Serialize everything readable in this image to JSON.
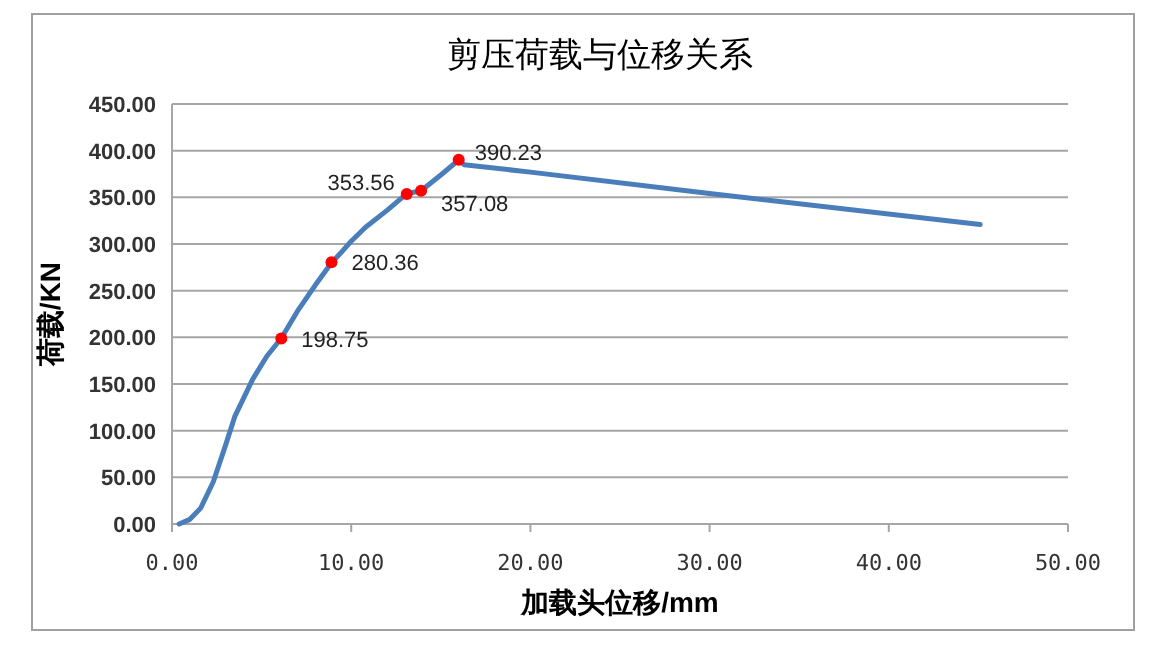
{
  "chart_data": {
    "type": "line",
    "title": "剪压荷载与位移关系",
    "xlabel": "加载头位移/mm",
    "ylabel": "荷载/KN",
    "xlim": [
      0,
      50
    ],
    "xticks": [
      {
        "value": 0,
        "label": "0.00"
      },
      {
        "value": 10,
        "label": "10.00"
      },
      {
        "value": 20,
        "label": "20.00"
      },
      {
        "value": 30,
        "label": "30.00"
      },
      {
        "value": 40,
        "label": "40.00"
      },
      {
        "value": 50,
        "label": "50.00"
      }
    ],
    "ylim": [
      0,
      450
    ],
    "yticks": [
      {
        "value": 0,
        "label": "0.00"
      },
      {
        "value": 50,
        "label": "50.00"
      },
      {
        "value": 100,
        "label": "100.00"
      },
      {
        "value": 150,
        "label": "150.00"
      },
      {
        "value": 200,
        "label": "200.00"
      },
      {
        "value": 250,
        "label": "250.00"
      },
      {
        "value": 300,
        "label": "300.00"
      },
      {
        "value": 350,
        "label": "350.00"
      },
      {
        "value": 400,
        "label": "400.00"
      },
      {
        "value": 450,
        "label": "450.00"
      }
    ],
    "grid": "y",
    "line_style": "solid",
    "series": [
      {
        "type": "line",
        "color": "#4a7ebb",
        "marker": "none",
        "x": [
          0.4,
          1.0,
          1.6,
          2.3,
          3.0,
          3.5,
          4.5,
          5.3,
          6.1,
          7.0,
          8.0,
          8.9,
          9.4,
          10.0,
          10.8,
          12.0,
          13.1,
          13.9,
          15.0,
          16.0,
          16.3,
          20,
          30,
          45.1
        ],
        "values": [
          0,
          5,
          17,
          45,
          85,
          115,
          155,
          180,
          199,
          228,
          256,
          280,
          290,
          303,
          318,
          336,
          354,
          357,
          374,
          390,
          385,
          377,
          354,
          321
        ]
      },
      {
        "type": "scatter",
        "color": "#ff0000",
        "marker": "circle",
        "x": [
          6.1,
          8.9,
          13.1,
          13.9,
          16.0
        ],
        "values": [
          198.75,
          280.36,
          353.56,
          357.08,
          390.23
        ],
        "value_labels": [
          "198.75",
          "280.36",
          "353.56",
          "357.08",
          "390.23"
        ]
      }
    ]
  }
}
